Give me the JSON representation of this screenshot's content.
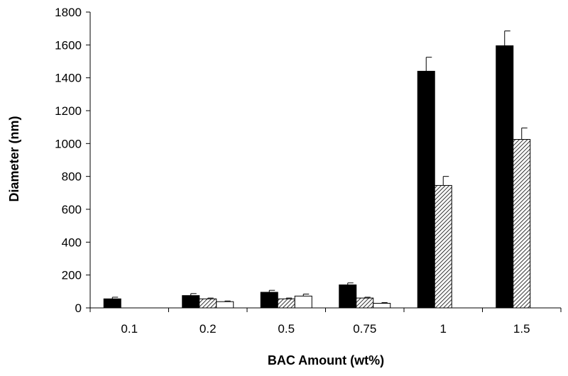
{
  "chart_data": {
    "type": "bar",
    "title": "",
    "xlabel": "BAC Amount  (wt%)",
    "ylabel": "Diameter (nm)",
    "categories": [
      "0.1",
      "0.2",
      "0.5",
      "0.75",
      "1",
      "1.5"
    ],
    "ylim": [
      0,
      1800
    ],
    "yticks": [
      0,
      200,
      400,
      600,
      800,
      1000,
      1200,
      1400,
      1600,
      1800
    ],
    "grid": false,
    "legend": "none",
    "series": [
      {
        "fill": "solid",
        "color": "#000000",
        "values": [
          55,
          75,
          95,
          140,
          1440,
          1595
        ],
        "errors": [
          10,
          12,
          12,
          12,
          85,
          90
        ]
      },
      {
        "fill": "hatched",
        "color": "#000000",
        "values": [
          null,
          55,
          55,
          60,
          745,
          1025
        ],
        "errors": [
          null,
          5,
          5,
          5,
          55,
          70
        ]
      },
      {
        "fill": "white",
        "color": "#000000",
        "values": [
          null,
          38,
          72,
          28,
          null,
          null
        ],
        "errors": [
          null,
          4,
          12,
          4,
          null,
          null
        ]
      }
    ]
  }
}
